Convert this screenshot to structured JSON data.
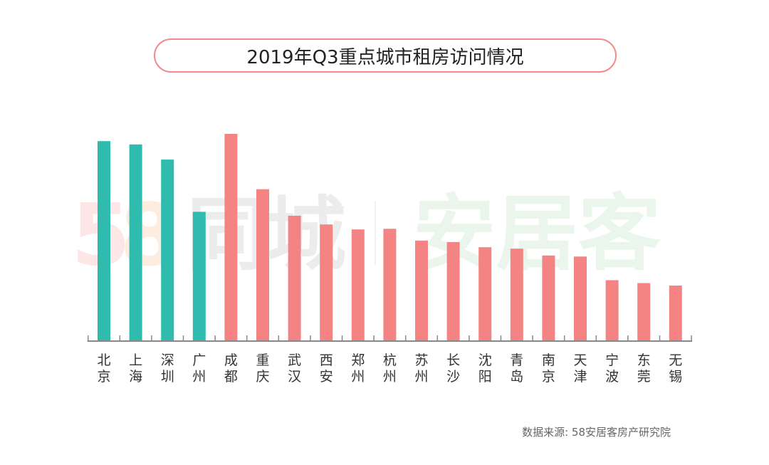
{
  "title": "2019年Q3重点城市租房访问情况",
  "source": "数据来源: 58安居客房产研究院",
  "watermark": {
    "num_5": "5",
    "num_8": "8",
    "left_text": "同城",
    "right_text": "安居客"
  },
  "colors": {
    "tier1": "#2fbcae",
    "other": "#f48484",
    "axis": "#888888",
    "title_border": "#f08c8c"
  },
  "chart_data": {
    "type": "bar",
    "title": "2019年Q3重点城市租房访问情况",
    "xlabel": "",
    "ylabel": "",
    "categories": [
      "北京",
      "上海",
      "深圳",
      "广州",
      "成都",
      "重庆",
      "武汉",
      "西安",
      "郑州",
      "杭州",
      "苏州",
      "长沙",
      "沈阳",
      "青岛",
      "南京",
      "天津",
      "宁波",
      "东莞",
      "无锡"
    ],
    "values": [
      96.5,
      94.9,
      87.6,
      62.4,
      100,
      73.3,
      60.5,
      56.3,
      53.9,
      54.2,
      48.5,
      47.8,
      45.3,
      44.6,
      41.3,
      40.8,
      29.4,
      28.0,
      26.8
    ],
    "tier1_count": 4,
    "ylim": [
      0,
      100
    ],
    "grid": false,
    "legend": "none"
  }
}
